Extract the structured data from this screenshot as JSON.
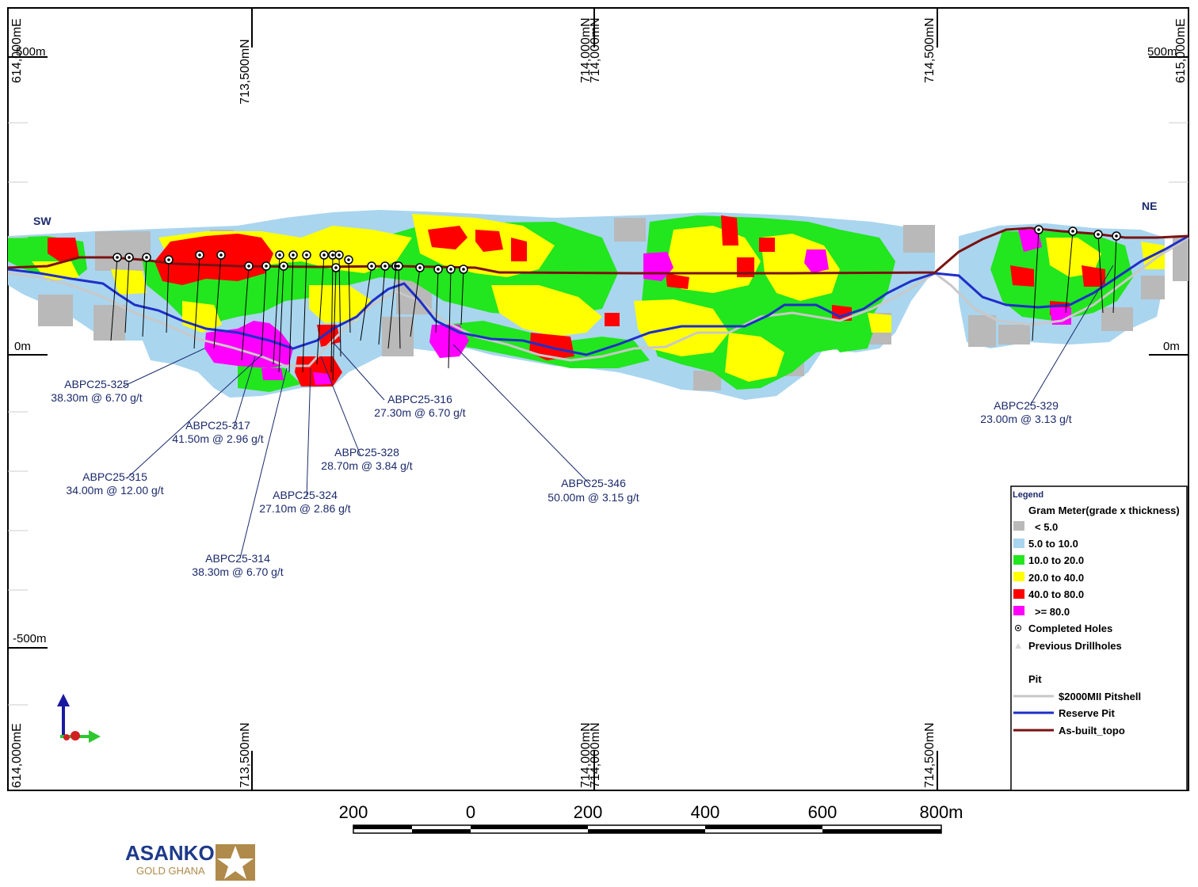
{
  "grid": {
    "easting_top": [
      "614,000mE",
      "615,000mE"
    ],
    "northing": [
      "713,500mN",
      "714,000mN",
      "714,500mN"
    ],
    "northing_overlap": "714,000mN",
    "easting_bottom": [
      "614,000mE"
    ]
  },
  "elevations": {
    "top_left": "500m",
    "top_right": "500m",
    "zero_left": "0m",
    "zero_right": "0m",
    "minus500": "-500m"
  },
  "directions": {
    "sw": "SW",
    "ne": "NE"
  },
  "holes": [
    {
      "id": "ABPC25-325",
      "result": "38.30m @ 6.70 g/t"
    },
    {
      "id": "ABPC25-317",
      "result": "41.50m @ 2.96 g/t"
    },
    {
      "id": "ABPC25-315",
      "result": "34.00m @ 12.00 g/t"
    },
    {
      "id": "ABPC25-328",
      "result": "28.70m @ 3.84 g/t"
    },
    {
      "id": "ABPC25-324",
      "result": "27.10m @ 2.86 g/t"
    },
    {
      "id": "ABPC25-314",
      "result": "38.30m @ 6.70 g/t"
    },
    {
      "id": "ABPC25-316",
      "result": "27.30m @ 6.70 g/t"
    },
    {
      "id": "ABPC25-346",
      "result": "50.00m @ 3.15 g/t"
    },
    {
      "id": "ABPC25-329",
      "result": "23.00m @ 3.13 g/t"
    }
  ],
  "legend": {
    "title": "Legend",
    "subtitle": "Gram Meter(grade x thickness)",
    "classes": [
      {
        "label": "< 5.0",
        "color": "#b9b9b9"
      },
      {
        "label": "5.0 to 10.0",
        "color": "#a9d5ef"
      },
      {
        "label": "10.0 to 20.0",
        "color": "#22e61e"
      },
      {
        "label": "20.0 to 40.0",
        "color": "#ffff00"
      },
      {
        "label": "40.0 to 80.0",
        "color": "#ff0000"
      },
      {
        "label": ">= 80.0",
        "color": "#ff00ff"
      }
    ],
    "completed": "Completed Holes",
    "previous": "Previous Drillholes",
    "pit_title": "Pit",
    "lines": [
      {
        "label": "$2000MII Pitshell",
        "color": "#c8c8c8"
      },
      {
        "label": "Reserve Pit",
        "color": "#1f2fc8"
      },
      {
        "label": "As-built_topo",
        "color": "#7a1212"
      }
    ]
  },
  "scale": {
    "labels": [
      "200",
      "0",
      "200",
      "400",
      "600",
      "800m"
    ]
  },
  "logo": {
    "name": "ASANKO",
    "sub": "GOLD GHANA"
  },
  "colors": {
    "label_text": "#1b2a6b",
    "frame": "#000000"
  }
}
